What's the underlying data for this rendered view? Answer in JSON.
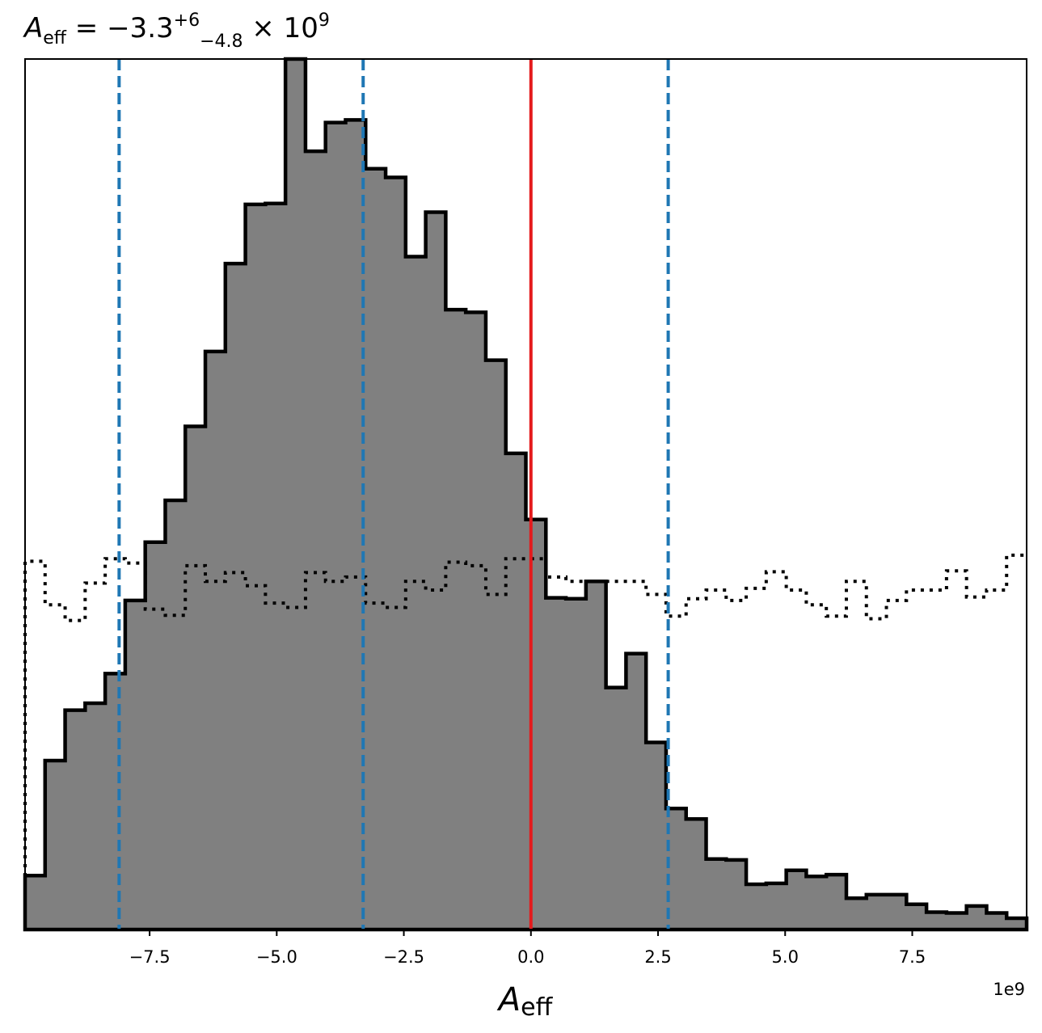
{
  "chart_data": {
    "type": "histogram",
    "title": {
      "symbol": "A",
      "symbol_sub": "eff",
      "equals": " = −3.3",
      "sup": "+6",
      "sub": "−4.8",
      "times": " × 10",
      "exp": "9"
    },
    "xlabel": {
      "symbol": "A",
      "sub": "eff"
    },
    "x_offset_label": "1e9",
    "xlim": [
      -9.95,
      9.75
    ],
    "ylim": [
      0,
      1.0
    ],
    "x_ticks": [
      -7.5,
      -5.0,
      -2.5,
      0.0,
      2.5,
      5.0,
      7.5
    ],
    "x_tick_labels": [
      "−7.5",
      "−5.0",
      "−2.5",
      "0.0",
      "2.5",
      "5.0",
      "7.5"
    ],
    "bin_edges": [
      -9.95,
      -9.556,
      -9.162,
      -8.768,
      -8.374,
      -7.98,
      -7.586,
      -7.192,
      -6.798,
      -6.404,
      -6.01,
      -5.616,
      -5.222,
      -4.828,
      -4.434,
      -4.04,
      -3.646,
      -3.252,
      -2.858,
      -2.464,
      -2.07,
      -1.676,
      -1.282,
      -0.888,
      -0.494,
      -0.1,
      0.294,
      0.688,
      1.082,
      1.476,
      1.87,
      2.264,
      2.658,
      3.052,
      3.446,
      3.84,
      4.234,
      4.628,
      5.022,
      5.416,
      5.81,
      6.204,
      6.598,
      6.992,
      7.386,
      7.78,
      8.174,
      8.568,
      8.962,
      9.356,
      9.75
    ],
    "series": [
      {
        "style": "filled-step",
        "fill": "#808080",
        "edge": "#000000",
        "values": [
          0.062,
          0.194,
          0.252,
          0.26,
          0.294,
          0.378,
          0.445,
          0.493,
          0.578,
          0.664,
          0.765,
          0.833,
          0.834,
          1.0,
          0.894,
          0.927,
          0.93,
          0.874,
          0.864,
          0.773,
          0.824,
          0.712,
          0.709,
          0.654,
          0.547,
          0.471,
          0.381,
          0.38,
          0.4,
          0.278,
          0.317,
          0.215,
          0.139,
          0.127,
          0.081,
          0.08,
          0.052,
          0.053,
          0.068,
          0.061,
          0.063,
          0.036,
          0.04,
          0.04,
          0.029,
          0.02,
          0.019,
          0.027,
          0.019,
          0.013
        ]
      },
      {
        "style": "dotted-step",
        "edge": "#000000",
        "values": [
          0.423,
          0.373,
          0.355,
          0.398,
          0.426,
          0.421,
          0.368,
          0.361,
          0.418,
          0.4,
          0.41,
          0.395,
          0.375,
          0.37,
          0.41,
          0.4,
          0.405,
          0.375,
          0.37,
          0.4,
          0.39,
          0.422,
          0.418,
          0.385,
          0.426,
          0.426,
          0.405,
          0.4,
          0.4,
          0.4,
          0.4,
          0.385,
          0.36,
          0.38,
          0.39,
          0.378,
          0.392,
          0.411,
          0.39,
          0.373,
          0.36,
          0.4,
          0.357,
          0.378,
          0.39,
          0.39,
          0.412,
          0.382,
          0.39,
          0.43
        ]
      }
    ],
    "vlines": [
      {
        "x": -8.1,
        "color": "#1f77b4",
        "style": "dashed"
      },
      {
        "x": -3.3,
        "color": "#1f77b4",
        "style": "dashed"
      },
      {
        "x": 2.7,
        "color": "#1f77b4",
        "style": "dashed"
      },
      {
        "x": 0.0,
        "color": "#e41a1c",
        "style": "solid"
      }
    ],
    "y_ticks_visible": false,
    "grid": false
  }
}
